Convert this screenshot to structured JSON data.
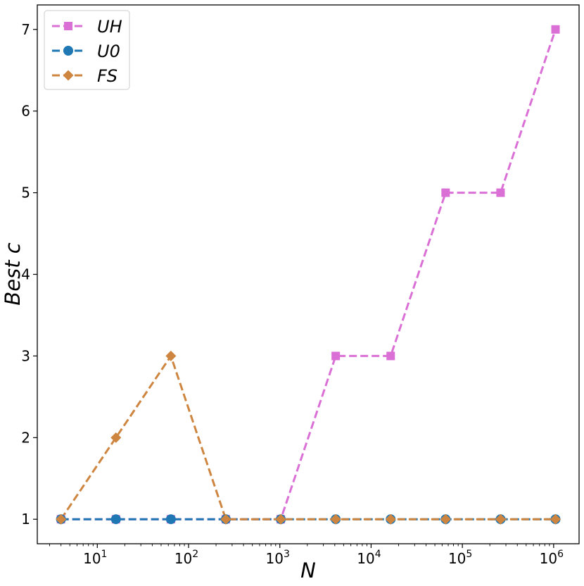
{
  "chart_data": {
    "type": "line",
    "title": "",
    "xlabel": "N",
    "ylabel": "Best c",
    "xscale": "log",
    "x": [
      4,
      16,
      64,
      256,
      1024,
      4096,
      16384,
      65536,
      262144,
      1048576
    ],
    "xlim": [
      2.2,
      1900000
    ],
    "ylim": [
      0.7,
      7.3
    ],
    "yticks": [
      1,
      2,
      3,
      4,
      5,
      6,
      7
    ],
    "xticks": [
      {
        "value": 10,
        "base": "10",
        "exp": "1"
      },
      {
        "value": 100,
        "base": "10",
        "exp": "2"
      },
      {
        "value": 1000,
        "base": "10",
        "exp": "3"
      },
      {
        "value": 10000,
        "base": "10",
        "exp": "4"
      },
      {
        "value": 100000,
        "base": "10",
        "exp": "5"
      },
      {
        "value": 1000000,
        "base": "10",
        "exp": "6"
      }
    ],
    "grid": false,
    "legend_position": "top-left",
    "series": [
      {
        "name": "UH",
        "color": "#da70d6",
        "marker": "square",
        "values": [
          1,
          1,
          1,
          1,
          1,
          3,
          3,
          5,
          5,
          7
        ]
      },
      {
        "name": "U0",
        "color": "#1f77b4",
        "marker": "circle",
        "values": [
          1,
          1,
          1,
          1,
          1,
          1,
          1,
          1,
          1,
          1
        ]
      },
      {
        "name": "FS",
        "color": "#cd853f",
        "marker": "diamond",
        "values": [
          1,
          2,
          3,
          1,
          1,
          1,
          1,
          1,
          1,
          1
        ]
      }
    ]
  }
}
